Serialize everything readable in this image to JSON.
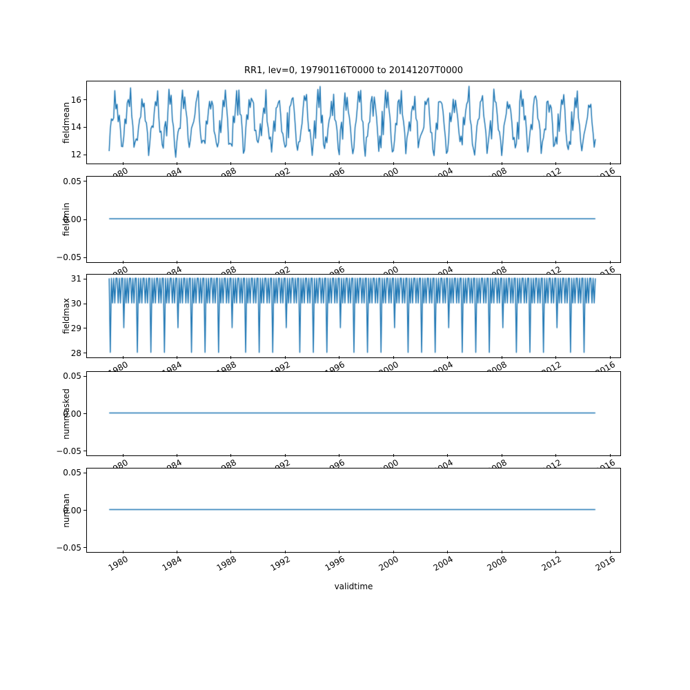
{
  "title": "RR1, lev=0, 19790116T0000 to 20141207T0000",
  "xlabel": "validtime",
  "line_color": "#1f77b4",
  "x_axis": {
    "start_year": 1979,
    "start_month": 1,
    "end_year": 2014,
    "end_month": 12,
    "xlim": [
      1977.4,
      2016.7
    ],
    "ticks": [
      1980,
      1984,
      1988,
      1992,
      1996,
      2000,
      2004,
      2008,
      2012,
      2016
    ],
    "tick_labels": [
      "1980",
      "1984",
      "1988",
      "1992",
      "1996",
      "2000",
      "2004",
      "2008",
      "2012",
      "2016"
    ]
  },
  "chart_data": [
    {
      "type": "line",
      "ylabel": "fieldmean",
      "ylim": [
        11.4,
        17.3
      ],
      "yticks": [
        12,
        14,
        16
      ],
      "ytick_labels": [
        "12",
        "14",
        "16"
      ],
      "series_type": "seasonal_noisy",
      "description": "Monthly mean of RR1 field, noisy seasonal cycle oscillating roughly between 11.6 and 17.1",
      "climatology": [
        12.6,
        13.2,
        14.4,
        13.8,
        15.3,
        16.1,
        15.5,
        16.3,
        15.0,
        14.1,
        13.1,
        12.5
      ],
      "noise_amplitude": 0.75,
      "seed": 7
    },
    {
      "type": "line",
      "ylabel": "fieldmin",
      "ylim": [
        -0.055,
        0.055
      ],
      "yticks": [
        -0.05,
        0,
        0.05
      ],
      "ytick_labels": [
        "−0.05",
        "0.00",
        "0.05"
      ],
      "series_type": "constant",
      "value": 0,
      "description": "Field minimum is constant 0 for every month"
    },
    {
      "type": "line",
      "ylabel": "fieldmax",
      "ylim": [
        27.85,
        31.15
      ],
      "yticks": [
        28,
        29,
        30,
        31
      ],
      "ytick_labels": [
        "28",
        "29",
        "30",
        "31"
      ],
      "series_type": "days_in_month",
      "values_cycle": [
        31,
        28,
        31,
        30,
        31,
        30,
        31,
        31,
        30,
        31,
        30,
        31
      ],
      "leap_february": 29,
      "description": "Field maximum equals the number of days in each month: 30/31 zigzag with dips to 28 (29 in leap years) every February"
    },
    {
      "type": "line",
      "ylabel": "nummasked",
      "ylim": [
        -0.055,
        0.055
      ],
      "yticks": [
        -0.05,
        0,
        0.05
      ],
      "ytick_labels": [
        "−0.05",
        "0.00",
        "0.05"
      ],
      "series_type": "constant",
      "value": 0,
      "description": "Number of masked points is constant 0"
    },
    {
      "type": "line",
      "ylabel": "numnan",
      "ylim": [
        -0.055,
        0.055
      ],
      "yticks": [
        -0.05,
        0,
        0.05
      ],
      "ytick_labels": [
        "−0.05",
        "0.00",
        "0.05"
      ],
      "series_type": "constant",
      "value": 0,
      "description": "Number of NaN points is constant 0"
    }
  ]
}
